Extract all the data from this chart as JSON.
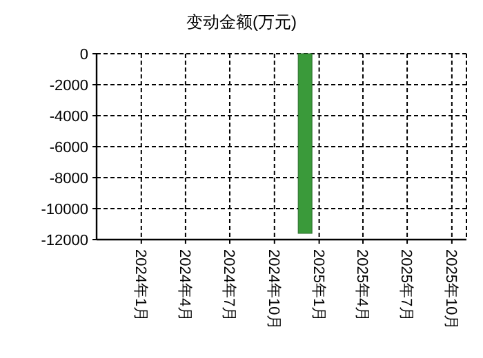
{
  "chart_data": {
    "type": "bar",
    "title": "变动金额(万元)",
    "x": [
      "2024-12-03"
    ],
    "values": [
      -11600
    ],
    "color": "#3a9a3a",
    "xlim": [
      "2023-10-01",
      "2025-10-31"
    ],
    "xticks": [
      {
        "value": "2024-01",
        "label": "2024年1月"
      },
      {
        "value": "2024-04",
        "label": "2024年4月"
      },
      {
        "value": "2024-07",
        "label": "2024年7月"
      },
      {
        "value": "2024-10",
        "label": "2024年10月"
      },
      {
        "value": "2025-01",
        "label": "2025年1月"
      },
      {
        "value": "2025-04",
        "label": "2025年4月"
      },
      {
        "value": "2025-07",
        "label": "2025年7月"
      },
      {
        "value": "2025-10",
        "label": "2025年10月"
      }
    ],
    "ylim": [
      -12000,
      0
    ],
    "yticks": [
      -12000,
      -10000,
      -8000,
      -6000,
      -4000,
      -2000,
      0
    ],
    "grid": true
  }
}
